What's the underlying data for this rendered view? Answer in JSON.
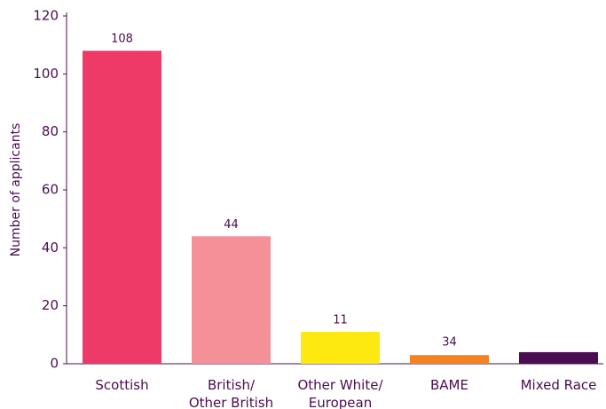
{
  "chart_data": {
    "type": "bar",
    "y_label": "Number of applicants",
    "categories": [
      "Scottish",
      "British/ Other British",
      "Other White/ European",
      "BAME",
      "Mixed Race"
    ],
    "values": [
      108,
      44,
      11,
      3,
      4
    ],
    "value_labels": [
      "108",
      "44",
      "11",
      null,
      null
    ],
    "annotations": [
      "34"
    ],
    "colors": [
      "#ee3a67",
      "#f39098",
      "#fde910",
      "#f58220",
      "#4a0d4f"
    ],
    "ylim": [
      0,
      120
    ],
    "yticks": [
      0,
      20,
      40,
      60,
      80,
      100,
      120
    ],
    "grid": false
  }
}
